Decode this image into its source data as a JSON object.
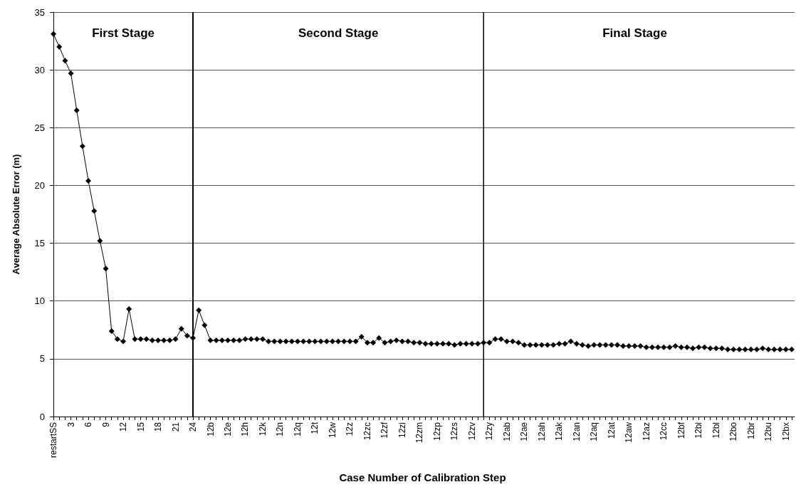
{
  "chart_data": {
    "type": "line",
    "xlabel": "Case Number of Calibration Step",
    "ylabel": "Average Absolute Error (m)",
    "categories": [
      "restartSS",
      null,
      null,
      "3",
      null,
      null,
      "6",
      null,
      null,
      "9",
      null,
      null,
      "12",
      null,
      null,
      "15",
      null,
      null,
      "18",
      null,
      null,
      "21",
      null,
      null,
      "24",
      null,
      null,
      "12b",
      null,
      null,
      "12e",
      null,
      null,
      "12h",
      null,
      null,
      "12k",
      null,
      null,
      "12n",
      null,
      null,
      "12q",
      null,
      null,
      "12t",
      null,
      null,
      "12w",
      null,
      null,
      "12z",
      null,
      null,
      "12zc",
      null,
      null,
      "12zf",
      null,
      null,
      "12zi",
      null,
      null,
      "12zm",
      null,
      null,
      "12zp",
      null,
      null,
      "12zs",
      null,
      null,
      "12zv",
      null,
      null,
      "12zy",
      null,
      null,
      "12ab",
      null,
      null,
      "12ae",
      null,
      null,
      "12ah",
      null,
      null,
      "12ak",
      null,
      null,
      "12an",
      null,
      null,
      "12aq",
      null,
      null,
      "12at",
      null,
      null,
      "12aw",
      null,
      null,
      "12az",
      null,
      null,
      "12cc",
      null,
      null,
      "12bf",
      null,
      null,
      "12bi",
      null,
      null,
      "12bl",
      null,
      null,
      "12bo",
      null,
      null,
      "12br",
      null,
      null,
      "12bu",
      null,
      null,
      "12bx",
      null
    ],
    "series": [
      {
        "color": "#000000",
        "values": [
          33.1,
          32.0,
          30.8,
          29.7,
          26.5,
          23.4,
          20.4,
          17.8,
          15.2,
          12.8,
          7.4,
          6.7,
          6.5,
          9.3,
          6.7,
          6.7,
          6.7,
          6.6,
          6.6,
          6.6,
          6.6,
          6.7,
          7.6,
          7.0,
          6.8,
          9.2,
          7.9,
          6.6,
          6.6,
          6.6,
          6.6,
          6.6,
          6.6,
          6.7,
          6.7,
          6.7,
          6.7,
          6.5,
          6.5,
          6.5,
          6.5,
          6.5,
          6.5,
          6.5,
          6.5,
          6.5,
          6.5,
          6.5,
          6.5,
          6.5,
          6.5,
          6.5,
          6.5,
          6.9,
          6.4,
          6.4,
          6.8,
          6.4,
          6.5,
          6.6,
          6.5,
          6.5,
          6.4,
          6.4,
          6.3,
          6.3,
          6.3,
          6.3,
          6.3,
          6.2,
          6.3,
          6.3,
          6.3,
          6.3,
          6.4,
          6.4,
          6.7,
          6.7,
          6.5,
          6.5,
          6.4,
          6.2,
          6.2,
          6.2,
          6.2,
          6.2,
          6.2,
          6.3,
          6.3,
          6.5,
          6.3,
          6.2,
          6.1,
          6.2,
          6.2,
          6.2,
          6.2,
          6.2,
          6.1,
          6.1,
          6.1,
          6.1,
          6.0,
          6.0,
          6.0,
          6.0,
          6.0,
          6.1,
          6.0,
          6.0,
          5.9,
          6.0,
          6.0,
          5.9,
          5.9,
          5.9,
          5.8,
          5.8,
          5.8,
          5.8,
          5.8,
          5.8,
          5.9,
          5.8,
          5.8,
          5.8,
          5.8,
          5.8
        ]
      }
    ],
    "ylim": [
      0,
      35
    ],
    "yticks": [
      0,
      5,
      10,
      15,
      20,
      25,
      30,
      35
    ],
    "grid": "y",
    "marker": "diamond",
    "line_style": "solid",
    "ref_lines": [
      {
        "axis": "x",
        "value": "24",
        "color": "#000000"
      }
    ],
    "annotations": [
      "First Stage",
      "Second Stage",
      "Final Stage"
    ]
  }
}
